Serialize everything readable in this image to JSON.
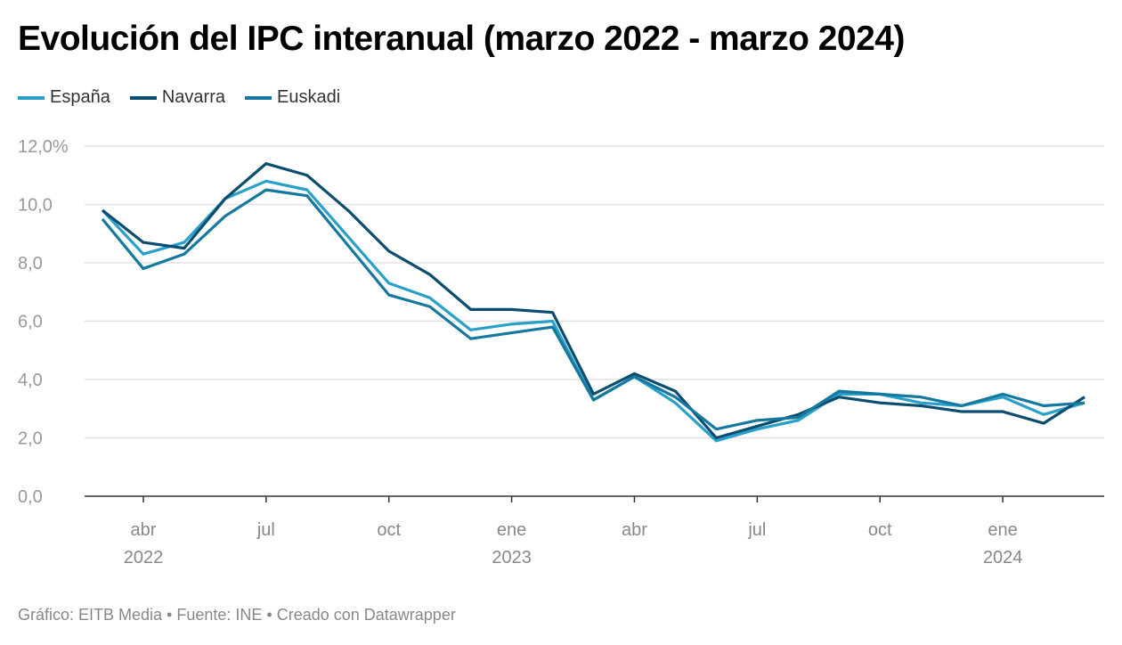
{
  "title": "Evolución del IPC interanual (marzo 2022 - marzo 2024)",
  "footer": "Gráfico: EITB Media • Fuente: INE • Creado con Datawrapper",
  "chart_data": {
    "type": "line",
    "title": "Evolución del IPC interanual (marzo 2022 - marzo 2024)",
    "x": [
      "2022-03",
      "2022-04",
      "2022-05",
      "2022-06",
      "2022-07",
      "2022-08",
      "2022-09",
      "2022-10",
      "2022-11",
      "2022-12",
      "2023-01",
      "2023-02",
      "2023-03",
      "2023-04",
      "2023-05",
      "2023-06",
      "2023-07",
      "2023-08",
      "2023-09",
      "2023-10",
      "2023-11",
      "2023-12",
      "2024-01",
      "2024-02",
      "2024-03"
    ],
    "ylim": [
      0,
      12
    ],
    "y_ticks": [
      "0,0",
      "2,0",
      "4,0",
      "6,0",
      "8,0",
      "10,0",
      "12,0%"
    ],
    "y_tick_values": [
      0,
      2,
      4,
      6,
      8,
      10,
      12
    ],
    "x_ticks": [
      {
        "i": 1,
        "label": "abr",
        "year": "2022"
      },
      {
        "i": 4,
        "label": "jul",
        "year": ""
      },
      {
        "i": 7,
        "label": "oct",
        "year": ""
      },
      {
        "i": 10,
        "label": "ene",
        "year": "2023"
      },
      {
        "i": 13,
        "label": "abr",
        "year": ""
      },
      {
        "i": 16,
        "label": "jul",
        "year": ""
      },
      {
        "i": 19,
        "label": "oct",
        "year": ""
      },
      {
        "i": 22,
        "label": "ene",
        "year": "2024"
      }
    ],
    "grid": true,
    "legend": "top-left",
    "series": [
      {
        "name": "España",
        "color": "#29a0c9",
        "values": [
          9.8,
          8.3,
          8.7,
          10.2,
          10.8,
          10.5,
          8.9,
          7.3,
          6.8,
          5.7,
          5.9,
          6.0,
          3.3,
          4.1,
          3.2,
          1.9,
          2.3,
          2.6,
          3.5,
          3.5,
          3.2,
          3.1,
          3.4,
          2.8,
          3.2
        ]
      },
      {
        "name": "Navarra",
        "color": "#0b4d6f",
        "values": [
          9.8,
          8.7,
          8.5,
          10.2,
          11.4,
          11.0,
          9.8,
          8.4,
          7.6,
          6.4,
          6.4,
          6.3,
          3.5,
          4.2,
          3.6,
          2.0,
          2.4,
          2.8,
          3.4,
          3.2,
          3.1,
          2.9,
          2.9,
          2.5,
          3.4
        ]
      },
      {
        "name": "Euskadi",
        "color": "#15799f",
        "values": [
          9.5,
          7.8,
          8.3,
          9.6,
          10.5,
          10.3,
          8.6,
          6.9,
          6.5,
          5.4,
          5.6,
          5.8,
          3.3,
          4.1,
          3.4,
          2.3,
          2.6,
          2.7,
          3.6,
          3.5,
          3.4,
          3.1,
          3.5,
          3.1,
          3.2
        ]
      }
    ]
  }
}
